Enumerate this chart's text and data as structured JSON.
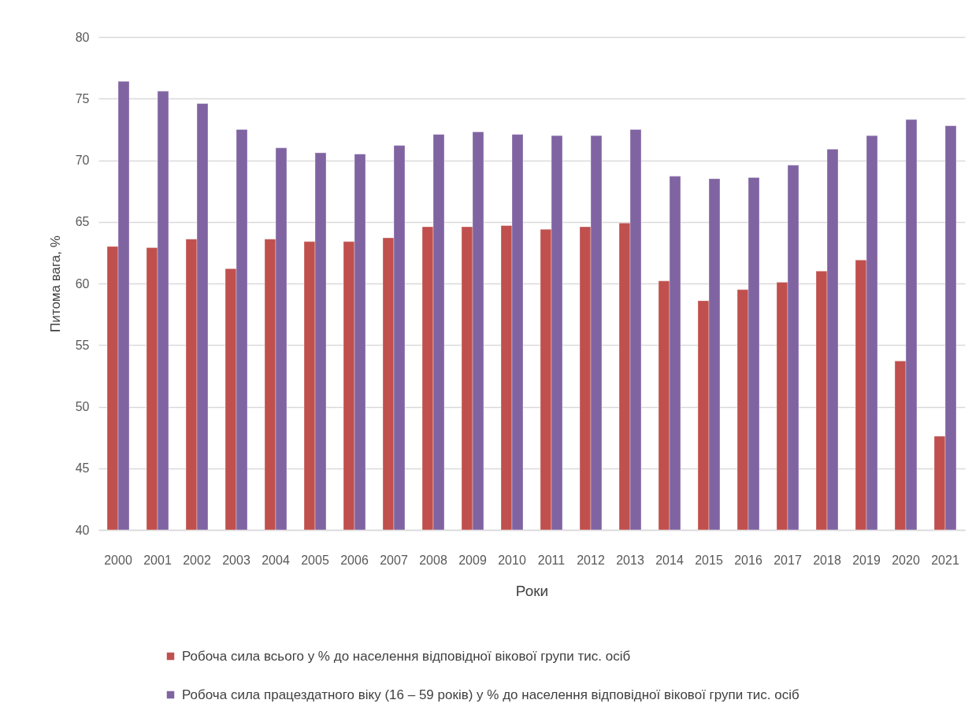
{
  "chart_data": {
    "type": "bar",
    "xlabel": "Роки",
    "ylabel": "Питома вага, %",
    "categories": [
      "2000",
      "2001",
      "2002",
      "2003",
      "2004",
      "2005",
      "2006",
      "2007",
      "2008",
      "2009",
      "2010",
      "2011",
      "2012",
      "2013",
      "2014",
      "2015",
      "2016",
      "2017",
      "2018",
      "2019",
      "2020",
      "2021"
    ],
    "series": [
      {
        "name": "Робоча сила всього у % до населення відповідної вікової групи тис. осіб",
        "color": "#c0504d",
        "values": [
          63.0,
          62.9,
          63.6,
          61.2,
          63.6,
          63.4,
          63.4,
          63.7,
          64.6,
          64.6,
          64.7,
          64.4,
          64.6,
          64.9,
          60.2,
          58.6,
          59.5,
          60.1,
          61.0,
          61.9,
          53.7,
          47.6
        ]
      },
      {
        "name": "Робоча сила працездатного віку (16 – 59 років) у % до населення відповідної вікової групи тис. осіб",
        "color": "#8064a2",
        "values": [
          76.4,
          75.6,
          74.6,
          72.5,
          71.0,
          70.6,
          70.5,
          71.2,
          72.1,
          72.3,
          72.1,
          72.0,
          72.0,
          72.5,
          68.7,
          68.5,
          68.6,
          69.6,
          70.9,
          72.0,
          73.3,
          72.8
        ]
      }
    ],
    "ylim": [
      40,
      80
    ],
    "yticks": [
      40,
      45,
      50,
      55,
      60,
      65,
      70,
      75,
      80
    ],
    "grid": "y",
    "legend": "bottom"
  }
}
